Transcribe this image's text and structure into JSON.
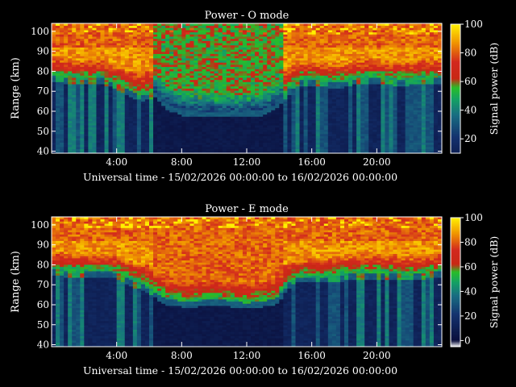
{
  "chart_data": [
    {
      "type": "heatmap",
      "title": "Power - O mode",
      "xlabel": "Universal time - 15/02/2026 00:00:00 to 16/02/2026 00:00:00",
      "ylabel": "Range (km)",
      "colorbar_label": "Signal power (dB)",
      "x_ticks": [
        "4:00",
        "8:00",
        "12:00",
        "16:00",
        "20:00"
      ],
      "x_tick_hours": [
        4,
        8,
        12,
        16,
        20
      ],
      "xlim_hours": [
        0,
        24
      ],
      "y_ticks": [
        40,
        50,
        60,
        70,
        80,
        90,
        100
      ],
      "ylim": [
        39,
        104
      ],
      "cbar_ticks": [
        20,
        40,
        60,
        80,
        100
      ],
      "cbar_range": [
        10,
        100
      ],
      "echo_floor_km": [
        [
          0,
          78
        ],
        [
          1,
          77
        ],
        [
          2,
          76
        ],
        [
          3,
          77
        ],
        [
          4,
          74
        ],
        [
          5,
          70
        ],
        [
          5.6,
          68
        ],
        [
          6.5,
          70
        ],
        [
          7,
          64
        ],
        [
          8,
          61
        ],
        [
          9,
          60
        ],
        [
          10,
          60
        ],
        [
          11,
          60
        ],
        [
          12,
          60
        ],
        [
          13,
          61
        ],
        [
          13.8,
          64
        ],
        [
          14.5,
          70
        ],
        [
          15,
          76
        ],
        [
          16,
          76
        ],
        [
          17,
          75
        ],
        [
          18,
          75
        ],
        [
          19,
          77
        ],
        [
          20,
          77
        ],
        [
          21,
          76
        ],
        [
          22,
          76
        ],
        [
          23,
          77
        ],
        [
          24,
          77
        ]
      ]
    },
    {
      "type": "heatmap",
      "title": "Power - E mode",
      "xlabel": "Universal time - 15/02/2026 00:00:00 to 16/02/2026 00:00:00",
      "ylabel": "Range (km)",
      "colorbar_label": "Signal power (dB)",
      "x_ticks": [
        "4:00",
        "8:00",
        "12:00",
        "16:00",
        "20:00"
      ],
      "x_tick_hours": [
        4,
        8,
        12,
        16,
        20
      ],
      "xlim_hours": [
        0,
        24
      ],
      "y_ticks": [
        40,
        50,
        60,
        70,
        80,
        90,
        100
      ],
      "ylim": [
        39,
        104
      ],
      "cbar_ticks": [
        0,
        20,
        40,
        60,
        80,
        100
      ],
      "cbar_range": [
        -5,
        100
      ],
      "echo_floor_km": [
        [
          0,
          78
        ],
        [
          1,
          77
        ],
        [
          2,
          77
        ],
        [
          3,
          77
        ],
        [
          4,
          76
        ],
        [
          5,
          72
        ],
        [
          5.6,
          70
        ],
        [
          6.5,
          66
        ],
        [
          7,
          63
        ],
        [
          8,
          62
        ],
        [
          9,
          62
        ],
        [
          10,
          63
        ],
        [
          11,
          62
        ],
        [
          12,
          61
        ],
        [
          13,
          62
        ],
        [
          13.8,
          63
        ],
        [
          14.5,
          70
        ],
        [
          15,
          74
        ],
        [
          16,
          74
        ],
        [
          17,
          74
        ],
        [
          18,
          75
        ],
        [
          19,
          76
        ],
        [
          20,
          76
        ],
        [
          21,
          76
        ],
        [
          22,
          75
        ],
        [
          23,
          76
        ],
        [
          24,
          77
        ]
      ]
    }
  ]
}
